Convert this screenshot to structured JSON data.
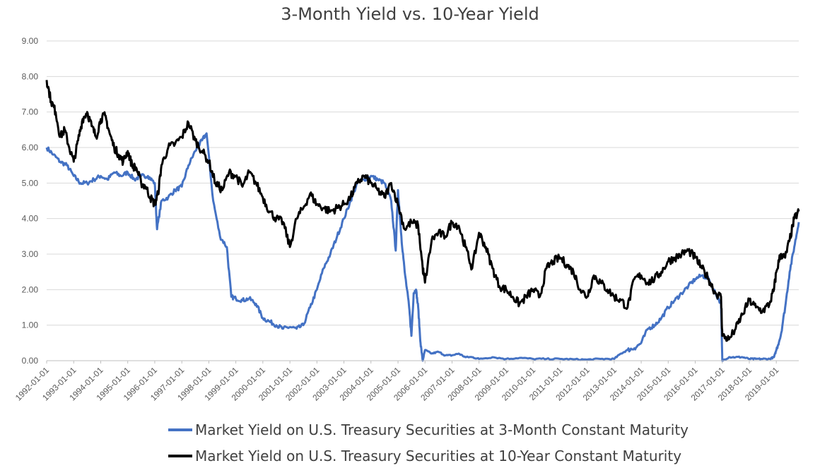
{
  "chart_data": {
    "type": "line",
    "title": "3-Month Yield vs. 10-Year Yield",
    "xlabel": "",
    "ylabel": "",
    "xlim": [
      "1992-01-01",
      "2019-11-01"
    ],
    "ylim": [
      0,
      9
    ],
    "grid": true,
    "legend_position": "bottom",
    "y_ticks": [
      "0.00",
      "1.00",
      "2.00",
      "3.00",
      "4.00",
      "5.00",
      "6.00",
      "7.00",
      "8.00",
      "9.00"
    ],
    "x_ticks": [
      "1992-01-01",
      "1993-01-01",
      "1994-01-01",
      "1995-01-01",
      "1996-01-01",
      "1997-01-01",
      "1998-01-01",
      "1999-01-01",
      "2000-01-01",
      "2001-01-01",
      "2002-01-01",
      "2003-01-01",
      "2004-01-01",
      "2005-01-01",
      "2006-01-01",
      "2007-01-01",
      "2008-01-01",
      "2009-01-01",
      "2010-01-01",
      "2011-01-01",
      "2012-01-01",
      "2013-01-01",
      "2014-01-01",
      "2015-01-01",
      "2016-01-01",
      "2017-01-01",
      "2018-01-01",
      "2019-01-01"
    ],
    "series": [
      {
        "name": "Market Yield on U.S. Treasury Securities at 3-Month Constant Maturity",
        "color": "#4472C4",
        "x": [
          "1992-01-01",
          "1992-04-01",
          "1992-07-01",
          "1992-10-01",
          "1993-01-01",
          "1993-04-01",
          "1993-07-01",
          "1993-10-01",
          "1994-01-01",
          "1994-04-01",
          "1994-07-01",
          "1994-10-01",
          "1995-01-01",
          "1995-04-01",
          "1995-07-01",
          "1995-10-01",
          "1996-01-01",
          "1996-02-01",
          "1996-04-01",
          "1996-07-01",
          "1996-10-01",
          "1997-01-01",
          "1997-04-01",
          "1997-07-01",
          "1997-10-01",
          "1997-12-01",
          "1998-03-01",
          "1998-06-01",
          "1998-09-01",
          "1998-11-01",
          "1999-01-01",
          "1999-04-01",
          "1999-07-01",
          "1999-10-01",
          "2000-01-01",
          "2000-04-01",
          "2000-07-01",
          "2000-10-01",
          "2001-01-01",
          "2001-04-01",
          "2001-07-01",
          "2001-10-01",
          "2002-01-01",
          "2002-04-01",
          "2002-07-01",
          "2002-10-01",
          "2003-01-01",
          "2003-04-01",
          "2003-07-01",
          "2003-10-01",
          "2004-01-01",
          "2004-04-01",
          "2004-07-01",
          "2004-10-01",
          "2004-12-01",
          "2005-01-01",
          "2005-02-15",
          "2005-04-01",
          "2005-06-01",
          "2005-07-01",
          "2005-08-01",
          "2005-09-01",
          "2005-10-01",
          "2005-11-01",
          "2005-12-01",
          "2006-01-01",
          "2006-04-01",
          "2006-07-01",
          "2006-10-01",
          "2007-01-01",
          "2007-04-01",
          "2007-07-01",
          "2007-10-01",
          "2008-01-01",
          "2008-07-01",
          "2009-01-01",
          "2009-07-01",
          "2010-01-01",
          "2010-07-01",
          "2011-01-01",
          "2011-07-01",
          "2012-01-01",
          "2012-07-01",
          "2013-01-01",
          "2013-04-01",
          "2013-07-01",
          "2013-10-01",
          "2014-01-01",
          "2014-04-01",
          "2014-07-01",
          "2014-10-01",
          "2015-01-01",
          "2015-04-01",
          "2015-07-01",
          "2015-10-01",
          "2016-01-01",
          "2016-04-01",
          "2016-07-01",
          "2016-10-01",
          "2016-12-15",
          "2017-01-01",
          "2017-04-01",
          "2017-07-01",
          "2017-10-01",
          "2018-01-01",
          "2018-04-01",
          "2018-07-01",
          "2018-10-01",
          "2018-12-01",
          "2019-01-01",
          "2019-03-01",
          "2019-05-01",
          "2019-07-01",
          "2019-09-01",
          "2019-11-01"
        ],
        "values": [
          6.0,
          5.8,
          5.6,
          5.5,
          5.2,
          5.0,
          5.0,
          5.1,
          5.2,
          5.1,
          5.3,
          5.2,
          5.3,
          5.1,
          5.2,
          5.2,
          5.0,
          3.7,
          4.5,
          4.6,
          4.8,
          4.9,
          5.5,
          5.9,
          6.2,
          6.4,
          4.5,
          3.5,
          3.2,
          1.8,
          1.75,
          1.7,
          1.75,
          1.6,
          1.2,
          1.1,
          1.0,
          0.9,
          0.95,
          0.9,
          1.0,
          1.5,
          2.0,
          2.6,
          3.0,
          3.5,
          4.0,
          4.5,
          5.0,
          5.1,
          5.2,
          5.1,
          5.0,
          4.5,
          3.1,
          4.8,
          3.5,
          2.5,
          1.5,
          0.7,
          1.9,
          2.0,
          1.5,
          0.5,
          0.0,
          0.3,
          0.2,
          0.25,
          0.15,
          0.15,
          0.2,
          0.1,
          0.1,
          0.05,
          0.1,
          0.05,
          0.08,
          0.05,
          0.05,
          0.05,
          0.04,
          0.03,
          0.05,
          0.05,
          0.2,
          0.3,
          0.35,
          0.5,
          0.9,
          1.0,
          1.2,
          1.5,
          1.7,
          1.9,
          2.1,
          2.3,
          2.4,
          2.3,
          1.9,
          1.6,
          0.0,
          0.1,
          0.1,
          0.1,
          0.05,
          0.05,
          0.05,
          0.05,
          0.1,
          0.3,
          0.7,
          1.5,
          2.5,
          3.2,
          3.9
        ]
      },
      {
        "name": "Market Yield on U.S. Treasury Securities at 10-Year Constant Maturity",
        "color": "#000000",
        "x": [
          "1992-01-01",
          "1992-03-01",
          "1992-05-01",
          "1992-07-01",
          "1992-09-01",
          "1992-11-01",
          "1993-01-01",
          "1993-03-01",
          "1993-05-01",
          "1993-07-01",
          "1993-09-01",
          "1993-11-01",
          "1994-01-01",
          "1994-03-01",
          "1994-05-01",
          "1994-07-01",
          "1994-09-01",
          "1994-11-01",
          "1995-01-01",
          "1995-03-01",
          "1995-05-01",
          "1995-07-01",
          "1995-09-01",
          "1995-11-01",
          "1996-01-01",
          "1996-02-15",
          "1996-04-01",
          "1996-07-01",
          "1996-10-01",
          "1997-01-01",
          "1997-04-01",
          "1997-07-01",
          "1997-10-01",
          "1998-01-01",
          "1998-04-01",
          "1998-07-01",
          "1998-10-01",
          "1999-01-01",
          "1999-04-01",
          "1999-07-01",
          "1999-10-01",
          "2000-01-01",
          "2000-04-01",
          "2000-07-01",
          "2000-10-01",
          "2001-01-01",
          "2001-04-01",
          "2001-07-01",
          "2001-10-01",
          "2002-01-01",
          "2002-04-01",
          "2002-07-01",
          "2002-10-01",
          "2003-01-01",
          "2003-04-01",
          "2003-07-01",
          "2003-10-01",
          "2004-01-01",
          "2004-04-01",
          "2004-07-01",
          "2004-10-01",
          "2005-01-01",
          "2005-04-01",
          "2005-07-01",
          "2005-10-01",
          "2005-12-01",
          "2006-01-01",
          "2006-04-01",
          "2006-07-01",
          "2006-10-01",
          "2007-01-01",
          "2007-04-01",
          "2007-07-01",
          "2007-10-01",
          "2008-01-01",
          "2008-04-01",
          "2008-07-01",
          "2008-10-01",
          "2009-01-01",
          "2009-04-01",
          "2009-07-01",
          "2009-10-01",
          "2010-01-01",
          "2010-04-01",
          "2010-07-01",
          "2010-10-01",
          "2011-01-01",
          "2011-04-01",
          "2011-07-01",
          "2011-10-01",
          "2012-01-01",
          "2012-04-01",
          "2012-07-01",
          "2012-10-01",
          "2013-01-01",
          "2013-04-01",
          "2013-07-01",
          "2013-10-01",
          "2014-01-01",
          "2014-04-01",
          "2014-07-01",
          "2014-10-01",
          "2015-01-01",
          "2015-04-01",
          "2015-07-01",
          "2015-10-01",
          "2016-01-01",
          "2016-04-01",
          "2016-07-01",
          "2016-10-01",
          "2016-12-15",
          "2017-01-01",
          "2017-04-01",
          "2017-07-01",
          "2017-10-01",
          "2018-01-01",
          "2018-04-01",
          "2018-07-01",
          "2018-10-01",
          "2018-12-01",
          "2019-01-01",
          "2019-03-01",
          "2019-05-01",
          "2019-07-01",
          "2019-09-01",
          "2019-11-01"
        ],
        "values": [
          7.9,
          7.3,
          7.0,
          6.3,
          6.5,
          6.0,
          5.6,
          6.2,
          6.8,
          7.0,
          6.6,
          6.3,
          6.8,
          6.9,
          6.4,
          6.0,
          5.8,
          5.6,
          5.9,
          5.5,
          5.4,
          5.0,
          4.9,
          4.6,
          4.4,
          4.7,
          5.5,
          6.0,
          6.1,
          6.3,
          6.7,
          6.2,
          5.9,
          5.6,
          5.0,
          4.8,
          5.3,
          5.2,
          4.9,
          5.3,
          5.0,
          4.6,
          4.2,
          4.0,
          3.9,
          3.2,
          4.0,
          4.3,
          4.7,
          4.4,
          4.3,
          4.2,
          4.3,
          4.4,
          4.6,
          5.0,
          5.2,
          5.0,
          4.8,
          4.6,
          5.0,
          4.4,
          3.7,
          3.9,
          3.8,
          2.6,
          2.2,
          3.4,
          3.6,
          3.5,
          3.9,
          3.8,
          3.2,
          2.6,
          3.6,
          3.2,
          2.6,
          2.1,
          2.0,
          1.8,
          1.6,
          1.8,
          2.0,
          1.8,
          2.6,
          2.8,
          2.9,
          2.7,
          2.5,
          2.0,
          1.8,
          2.4,
          2.2,
          2.0,
          1.8,
          1.7,
          1.5,
          2.3,
          2.4,
          2.2,
          2.3,
          2.5,
          2.8,
          2.9,
          3.0,
          3.1,
          2.9,
          2.6,
          2.3,
          1.9,
          1.8,
          0.7,
          0.6,
          0.9,
          1.3,
          1.7,
          1.5,
          1.4,
          1.6,
          2.0,
          2.5,
          3.0,
          2.9,
          3.4,
          4.0,
          4.2
        ]
      }
    ]
  }
}
